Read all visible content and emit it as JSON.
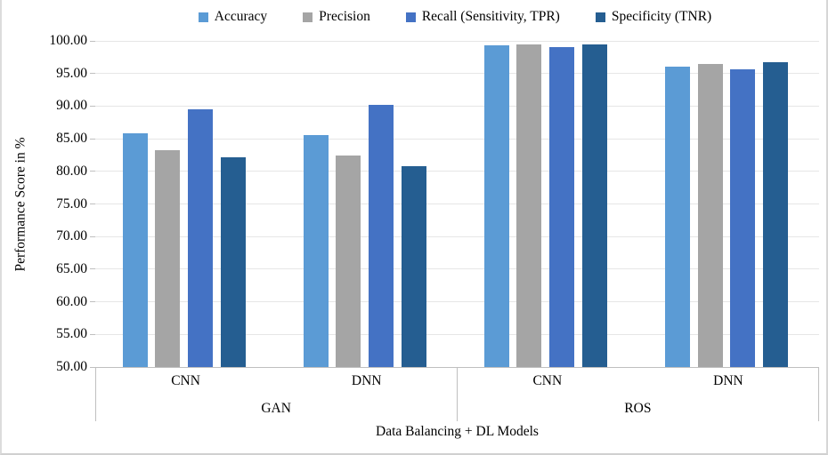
{
  "chart_data": {
    "type": "bar",
    "title": "",
    "ylabel": "Performance Score in %",
    "xlabel": "Data Balancing + DL Models",
    "ylim": [
      50,
      100
    ],
    "ytick_step": 5,
    "grid": true,
    "legend_position": "top-center",
    "yticks": [
      "100.00",
      "95.00",
      "90.00",
      "85.00",
      "80.00",
      "75.00",
      "70.00",
      "65.00",
      "60.00",
      "55.00",
      "50.00"
    ],
    "group_labels": [
      "GAN",
      "ROS"
    ],
    "categories": [
      {
        "group": "GAN",
        "label": "CNN"
      },
      {
        "group": "GAN",
        "label": "DNN"
      },
      {
        "group": "ROS",
        "label": "CNN"
      },
      {
        "group": "ROS",
        "label": "DNN"
      }
    ],
    "series": [
      {
        "name": "Accuracy",
        "color": "#5B9BD5",
        "values": [
          85.8,
          85.6,
          99.3,
          96.1
        ]
      },
      {
        "name": "Precision",
        "color": "#A5A5A5",
        "values": [
          83.3,
          82.4,
          99.4,
          96.5
        ]
      },
      {
        "name": "Recall (Sensitivity, TPR)",
        "color": "#4472C4",
        "values": [
          89.5,
          90.2,
          99.1,
          95.6
        ]
      },
      {
        "name": "Specificity (TNR)",
        "color": "#255E91",
        "values": [
          82.1,
          80.8,
          99.4,
          96.7
        ]
      }
    ]
  }
}
